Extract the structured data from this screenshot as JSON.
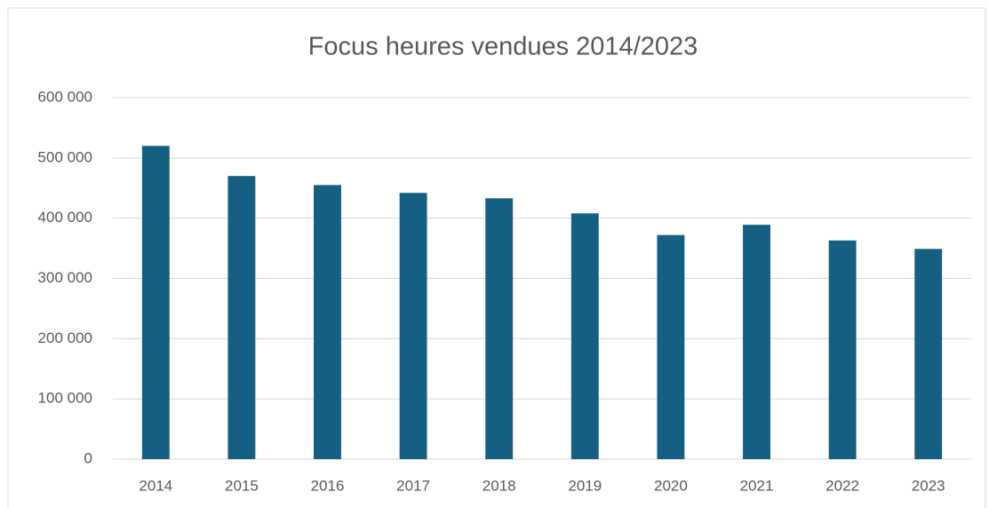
{
  "chart_data": {
    "type": "bar",
    "title": "Focus heures vendues 2014/2023",
    "categories": [
      "2014",
      "2015",
      "2016",
      "2017",
      "2018",
      "2019",
      "2020",
      "2021",
      "2022",
      "2023"
    ],
    "values": [
      520000,
      470000,
      455000,
      442000,
      433000,
      408000,
      372000,
      389000,
      363000,
      349000
    ],
    "color": "#156082",
    "ylim": [
      0,
      600000
    ],
    "yticks": [
      0,
      {
        "value": 100000,
        "label": "100 000"
      },
      {
        "value": 200000,
        "label": "200 000"
      },
      {
        "value": 300000,
        "label": "300 000"
      },
      {
        "value": 400000,
        "label": "400 000"
      },
      {
        "value": 500000,
        "label": "500 000"
      },
      {
        "value": 600000,
        "label": "600 000"
      }
    ],
    "grid": true
  }
}
